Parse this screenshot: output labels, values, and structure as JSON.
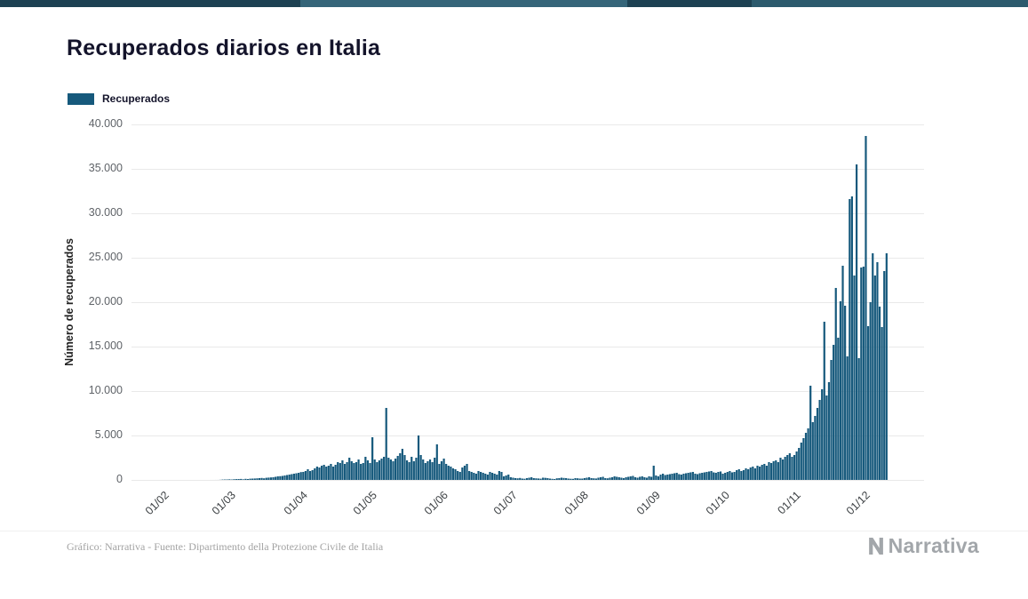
{
  "page": {
    "title": "Recuperados diarios en Italia",
    "footer": "Gráfico: Narrativa - Fuente: Dipartimento della Protezione Civile de Italia",
    "brand": "Narrativa"
  },
  "legend": {
    "label": "Recuperados"
  },
  "colors": {
    "bar": "#16597c",
    "strip_base": "#1d4152",
    "grid": "#e9e9e9",
    "title_text": "#14142b",
    "footer_text": "#a3a3a3"
  },
  "chart_data": {
    "type": "bar",
    "title": "Recuperados diarios en Italia",
    "xlabel": "",
    "ylabel": "Número de recuperados",
    "ylim": [
      0,
      40000
    ],
    "grid": true,
    "legend_position": "top-left",
    "series_name": "Recuperados",
    "x_start_date": "2020-02-01",
    "x_tick_labels": [
      "01/02",
      "01/03",
      "01/04",
      "01/05",
      "01/06",
      "01/07",
      "01/08",
      "01/09",
      "01/10",
      "01/11",
      "01/12"
    ],
    "x_tick_day_offsets": [
      0,
      29,
      60,
      90,
      121,
      151,
      182,
      213,
      243,
      274,
      304
    ],
    "y_tick_labels": [
      "0",
      "5.000",
      "10.000",
      "15.000",
      "20.000",
      "25.000",
      "30.000",
      "35.000",
      "40.000"
    ],
    "y_tick_values": [
      0,
      5000,
      10000,
      15000,
      20000,
      25000,
      30000,
      35000,
      40000
    ],
    "values": [
      0,
      0,
      0,
      0,
      0,
      0,
      0,
      0,
      0,
      0,
      0,
      0,
      0,
      0,
      0,
      0,
      0,
      0,
      0,
      0,
      0,
      1,
      1,
      2,
      3,
      15,
      40,
      45,
      50,
      65,
      45,
      80,
      90,
      100,
      110,
      66,
      120,
      100,
      140,
      150,
      160,
      180,
      200,
      220,
      180,
      240,
      260,
      280,
      300,
      350,
      400,
      420,
      450,
      500,
      550,
      600,
      650,
      700,
      750,
      800,
      880,
      900,
      1000,
      1200,
      1000,
      1100,
      1300,
      1500,
      1400,
      1600,
      1700,
      1500,
      1600,
      1800,
      1500,
      1700,
      2000,
      1900,
      2200,
      1800,
      2000,
      2500,
      2100,
      1900,
      2000,
      2300,
      1800,
      1900,
      2600,
      2200,
      1900,
      4800,
      2300,
      2000,
      2200,
      2400,
      2600,
      8100,
      2500,
      2300,
      2100,
      2400,
      2700,
      3000,
      3500,
      2800,
      2200,
      2000,
      2600,
      2100,
      2500,
      5000,
      2800,
      2300,
      1900,
      2100,
      2300,
      2000,
      2500,
      4000,
      1800,
      2100,
      2400,
      1800,
      1600,
      1500,
      1300,
      1200,
      1000,
      900,
      1400,
      1600,
      1800,
      1000,
      900,
      800,
      700,
      1000,
      900,
      800,
      700,
      600,
      900,
      800,
      700,
      600,
      1000,
      900,
      400,
      500,
      600,
      300,
      250,
      200,
      180,
      220,
      150,
      130,
      200,
      250,
      300,
      200,
      180,
      160,
      140,
      250,
      230,
      200,
      150,
      120,
      100,
      180,
      200,
      250,
      220,
      200,
      150,
      130,
      120,
      200,
      180,
      150,
      150,
      200,
      250,
      300,
      200,
      180,
      160,
      250,
      300,
      350,
      200,
      180,
      250,
      300,
      400,
      350,
      300,
      250,
      200,
      300,
      350,
      400,
      450,
      300,
      250,
      350,
      400,
      300,
      250,
      400,
      350,
      1600,
      500,
      400,
      600,
      700,
      550,
      600,
      650,
      700,
      750,
      800,
      650,
      600,
      700,
      750,
      800,
      850,
      900,
      700,
      650,
      750,
      800,
      850,
      900,
      950,
      1000,
      850,
      800,
      900,
      950,
      700,
      800,
      900,
      1000,
      850,
      900,
      1100,
      1200,
      1000,
      1100,
      1300,
      1200,
      1400,
      1500,
      1300,
      1600,
      1500,
      1700,
      1800,
      1600,
      2000,
      1900,
      2100,
      2200,
      2000,
      2500,
      2300,
      2600,
      2800,
      3000,
      2600,
      2800,
      3200,
      3600,
      4200,
      4700,
      5300,
      5800,
      10600,
      6500,
      7200,
      8100,
      9000,
      10200,
      17800,
      9500,
      11000,
      13500,
      15200,
      21600,
      16000,
      20100,
      24100,
      19600,
      13900,
      31600,
      31900,
      23000,
      35500,
      13700,
      23900,
      24000,
      38700,
      17300,
      20000,
      25500,
      23000,
      24500,
      19500,
      17200,
      23500,
      25500
    ]
  }
}
